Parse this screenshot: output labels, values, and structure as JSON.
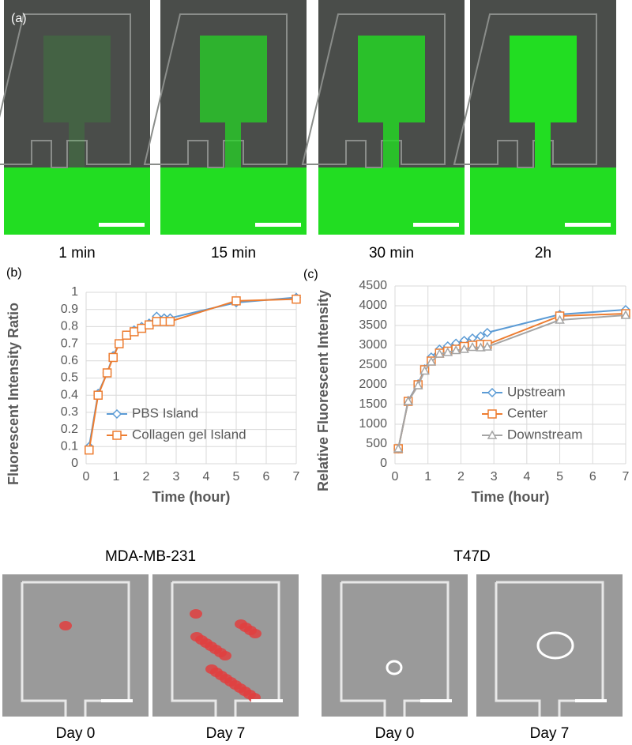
{
  "panel_labels": [
    "(a)",
    "(b)",
    "(c)"
  ],
  "panel_a": {
    "captions": [
      "1 min",
      "15 min",
      "30 min",
      "2h"
    ]
  },
  "panel_d": {
    "groups": [
      {
        "title": "MDA-MB-231",
        "captions": [
          "Day 0",
          "Day 7"
        ]
      },
      {
        "title": "T47D",
        "captions": [
          "Day 0",
          "Day 7"
        ]
      }
    ]
  },
  "chart_data": [
    {
      "type": "line",
      "xlabel": "Time (hour)",
      "ylabel": "Fluorescent Intensity Ratio",
      "x": [
        0.1,
        0.4,
        0.7,
        0.9,
        1.1,
        1.35,
        1.6,
        1.85,
        2.1,
        2.35,
        2.6,
        2.8,
        5,
        7
      ],
      "series": [
        {
          "name": "PBS Island",
          "color": "#5b9bd5",
          "marker": "diamond",
          "values": [
            0.1,
            0.41,
            0.53,
            0.63,
            0.7,
            0.75,
            0.78,
            0.8,
            0.82,
            0.86,
            0.85,
            0.85,
            0.94,
            0.97
          ]
        },
        {
          "name": "Collagen gel Island",
          "color": "#ed7d31",
          "marker": "square",
          "values": [
            0.08,
            0.4,
            0.53,
            0.62,
            0.7,
            0.75,
            0.77,
            0.79,
            0.81,
            0.83,
            0.83,
            0.83,
            0.95,
            0.96
          ]
        }
      ],
      "xlim": [
        0,
        7
      ],
      "xticks": [
        0,
        1,
        2,
        3,
        4,
        5,
        6,
        7
      ],
      "ylim": [
        0,
        1
      ],
      "yticks": [
        0,
        0.1,
        0.2,
        0.3,
        0.4,
        0.5,
        0.6,
        0.7,
        0.8,
        0.9,
        1
      ],
      "grid": true
    },
    {
      "type": "line",
      "xlabel": "Time (hour)",
      "ylabel": "Relative Fluorescent Intensity",
      "x": [
        0.1,
        0.4,
        0.7,
        0.9,
        1.1,
        1.35,
        1.6,
        1.85,
        2.1,
        2.35,
        2.6,
        2.8,
        5,
        7
      ],
      "series": [
        {
          "name": "Upstream",
          "color": "#5b9bd5",
          "marker": "diamond",
          "values": [
            380,
            1600,
            2020,
            2400,
            2700,
            2900,
            2980,
            3050,
            3120,
            3180,
            3230,
            3320,
            3780,
            3900
          ]
        },
        {
          "name": "Center",
          "color": "#ed7d31",
          "marker": "square",
          "values": [
            380,
            1580,
            2000,
            2380,
            2600,
            2800,
            2850,
            2900,
            2970,
            3000,
            3020,
            3020,
            3740,
            3800
          ]
        },
        {
          "name": "Downstream",
          "color": "#a5a5a5",
          "marker": "triangle",
          "values": [
            380,
            1580,
            1980,
            2350,
            2580,
            2780,
            2820,
            2870,
            2900,
            2950,
            2940,
            2960,
            3640,
            3760
          ]
        }
      ],
      "xlim": [
        0,
        7
      ],
      "xticks": [
        0,
        1,
        2,
        3,
        4,
        5,
        6,
        7
      ],
      "ylim": [
        0,
        4500
      ],
      "yticks": [
        0,
        500,
        1000,
        1500,
        2000,
        2500,
        3000,
        3500,
        4000,
        4500
      ],
      "grid": true
    }
  ]
}
